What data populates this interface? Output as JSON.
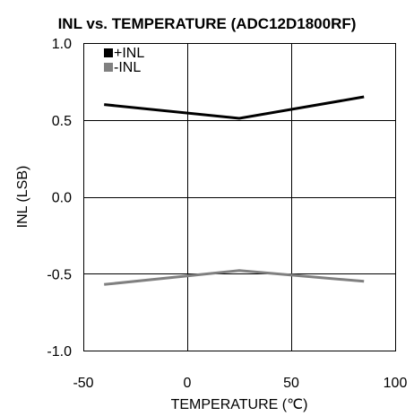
{
  "chart_data": {
    "type": "line",
    "title": "INL vs. TEMPERATURE (ADC12D1800RF)",
    "xlabel": "TEMPERATURE (℃)",
    "ylabel": "INL (LSB)",
    "xlim": [
      -50,
      100
    ],
    "ylim": [
      -1.0,
      1.0
    ],
    "x_ticks": [
      -50,
      0,
      50,
      100
    ],
    "y_ticks": [
      1.0,
      0.5,
      0.0,
      -0.5,
      -1.0
    ],
    "x_tick_labels": [
      "-50",
      "0",
      "50",
      "100"
    ],
    "y_tick_labels": [
      "1.0",
      "0.5",
      "0.0",
      "-0.5",
      "-1.0"
    ],
    "grid": true,
    "legend_position": "top-left",
    "series": [
      {
        "name": "+INL",
        "color": "#000000",
        "x": [
          -40,
          25,
          85
        ],
        "y": [
          0.6,
          0.51,
          0.65
        ]
      },
      {
        "name": "-INL",
        "color": "#808080",
        "x": [
          -40,
          25,
          85
        ],
        "y": [
          -0.57,
          -0.48,
          -0.55
        ]
      }
    ]
  }
}
